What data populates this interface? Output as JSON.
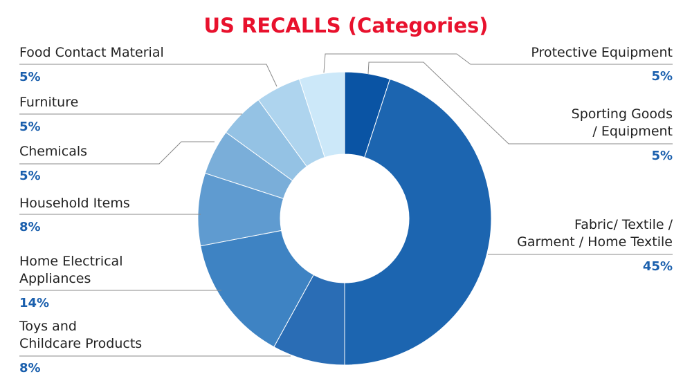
{
  "chart_data": {
    "type": "pie",
    "title": "US RECALLS (Categories)",
    "categories": [
      "Protective Equipment",
      "Sporting Goods\n/ Equipment",
      "Fabric/ Textile /\nGarment / Home Textile",
      "Toys and\nChildcare Products",
      "Home Electrical\nAppliances",
      "Household Items",
      "Chemicals",
      "Furniture",
      "Food Contact Material"
    ],
    "values": [
      5,
      5,
      45,
      8,
      14,
      8,
      5,
      5,
      5
    ],
    "value_labels": [
      "5%",
      "5%",
      "45%",
      "8%",
      "14%",
      "8%",
      "5%",
      "5%",
      "5%"
    ],
    "colors": [
      "#cce8f9",
      "#0a54a4",
      "#1c65b0",
      "#2a6db5",
      "#3e83c3",
      "#5f9bd0",
      "#7aaed9",
      "#94c2e4",
      "#aed4ee"
    ]
  }
}
